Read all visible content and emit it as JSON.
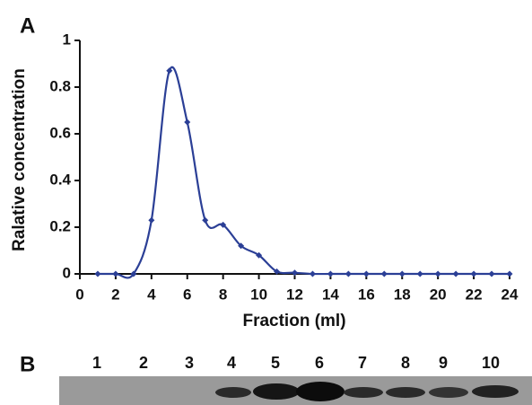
{
  "chart_data": {
    "type": "line",
    "panel_label": "A",
    "x_label": "Fraction (ml)",
    "y_label": "Ralative concentration",
    "x": [
      1,
      2,
      3,
      4,
      5,
      6,
      7,
      8,
      9,
      10,
      11,
      12,
      13,
      14,
      15,
      16,
      17,
      18,
      19,
      20,
      21,
      22,
      23,
      24
    ],
    "series": [
      {
        "color": "#2b3f96",
        "values": [
          0,
          0,
          0,
          0.23,
          0.87,
          0.65,
          0.23,
          0.21,
          0.12,
          0.08,
          0.01,
          0.005,
          0,
          0,
          0,
          0,
          0,
          0,
          0,
          0,
          0,
          0,
          0,
          0
        ]
      }
    ],
    "xlim": [
      0,
      24
    ],
    "xticks": [
      0,
      2,
      4,
      6,
      8,
      10,
      12,
      14,
      16,
      18,
      20,
      22,
      24
    ],
    "ylim": [
      0,
      1
    ],
    "yticks": [
      0,
      0.2,
      0.4,
      0.6,
      0.8,
      1
    ]
  },
  "gel": {
    "panel_label": "B",
    "lanes": [
      "1",
      "2",
      "3",
      "4",
      "5",
      "6",
      "7",
      "8",
      "9",
      "10"
    ]
  }
}
